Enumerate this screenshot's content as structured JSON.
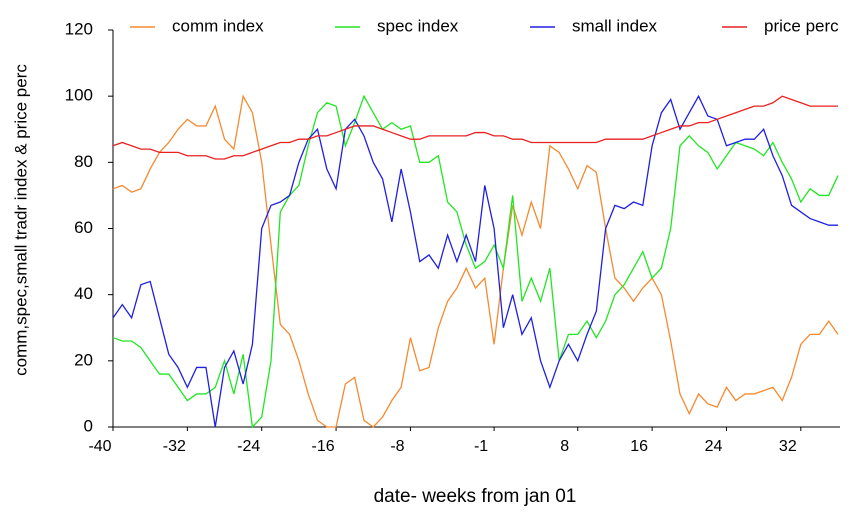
{
  "chart_data": {
    "type": "line",
    "xlabel": "date- weeks from jan 01",
    "ylabel": "comm,spec,small tradr index & price perc",
    "x": [
      0,
      1,
      2,
      3,
      4,
      5,
      6,
      7,
      8,
      9,
      10,
      11,
      12,
      13,
      14,
      15,
      16,
      17,
      18,
      19,
      20,
      21,
      22,
      23,
      24,
      25,
      26,
      27,
      28,
      29,
      30,
      31,
      32,
      33,
      34,
      35,
      36,
      37,
      38,
      39,
      40,
      41,
      42,
      43,
      44,
      45,
      46,
      47,
      48,
      49,
      50,
      51,
      52,
      53,
      54,
      55,
      56,
      57,
      58,
      59,
      60,
      61,
      62,
      63,
      64,
      65,
      66,
      67,
      68,
      69,
      70,
      71,
      72,
      73,
      74,
      75,
      76,
      77,
      78
    ],
    "xlim": [
      0,
      78
    ],
    "xticks": [
      {
        "value": 0,
        "label": "-40"
      },
      {
        "value": 8,
        "label": "-32"
      },
      {
        "value": 16,
        "label": "-24"
      },
      {
        "value": 24,
        "label": "-16"
      },
      {
        "value": 32,
        "label": "-8"
      },
      {
        "value": 41,
        "label": "-1"
      },
      {
        "value": 50,
        "label": "8"
      },
      {
        "value": 58,
        "label": "16"
      },
      {
        "value": 66,
        "label": "24"
      },
      {
        "value": 74,
        "label": "32"
      }
    ],
    "ylim": [
      0,
      120
    ],
    "yticks": [
      0,
      20,
      40,
      60,
      80,
      100,
      120
    ],
    "legend": "top",
    "series": [
      {
        "name": "comm index",
        "color": "#f58a30",
        "values": [
          72,
          73,
          71,
          72,
          78,
          83,
          86,
          90,
          93,
          91,
          91,
          97,
          87,
          84,
          100,
          95,
          80,
          55,
          31,
          28,
          20,
          10,
          2,
          0,
          0,
          13,
          15,
          2,
          0,
          3,
          8,
          12,
          27,
          17,
          18,
          30,
          38,
          42,
          48,
          42,
          45,
          25,
          48,
          67,
          58,
          68,
          60,
          85,
          83,
          78,
          72,
          79,
          77,
          60,
          45,
          42,
          38,
          42,
          45,
          40,
          26,
          10,
          4,
          10,
          7,
          6,
          12,
          8,
          10,
          10,
          11,
          12,
          8,
          15,
          25,
          28,
          28,
          32,
          28
        ]
      },
      {
        "name": "spec index",
        "color": "#22e622",
        "values": [
          27,
          26,
          26,
          24,
          20,
          16,
          16,
          12,
          8,
          10,
          10,
          12,
          20,
          10,
          22,
          0,
          3,
          20,
          65,
          70,
          73,
          85,
          95,
          98,
          97,
          85,
          92,
          100,
          95,
          90,
          92,
          90,
          91,
          80,
          80,
          82,
          68,
          65,
          55,
          48,
          50,
          55,
          48,
          70,
          38,
          45,
          38,
          48,
          20,
          28,
          28,
          32,
          27,
          32,
          40,
          43,
          48,
          53,
          45,
          48,
          60,
          85,
          88,
          85,
          83,
          78,
          82,
          86,
          85,
          84,
          82,
          86,
          80,
          75,
          68,
          72,
          70,
          70,
          76
        ]
      },
      {
        "name": "small index",
        "color": "#2020e0",
        "values": [
          33,
          37,
          33,
          43,
          44,
          33,
          22,
          18,
          12,
          18,
          18,
          0,
          18,
          23,
          13,
          25,
          60,
          67,
          68,
          70,
          80,
          87,
          90,
          78,
          72,
          90,
          93,
          88,
          80,
          75,
          62,
          78,
          65,
          50,
          52,
          48,
          58,
          50,
          58,
          50,
          73,
          60,
          30,
          40,
          28,
          33,
          20,
          12,
          20,
          25,
          20,
          28,
          35,
          60,
          67,
          66,
          68,
          67,
          85,
          95,
          99,
          90,
          95,
          100,
          94,
          93,
          85,
          86,
          87,
          87,
          90,
          82,
          76,
          67,
          65,
          63,
          62,
          61,
          61
        ]
      },
      {
        "name": "price perc",
        "color": "#e82020",
        "values": [
          85,
          86,
          85,
          84,
          84,
          83,
          83,
          83,
          82,
          82,
          82,
          81,
          81,
          82,
          82,
          83,
          84,
          85,
          86,
          86,
          87,
          87,
          88,
          88,
          89,
          90,
          91,
          91,
          91,
          90,
          89,
          88,
          87,
          87,
          88,
          88,
          88,
          88,
          88,
          89,
          89,
          88,
          88,
          87,
          87,
          86,
          86,
          86,
          86,
          86,
          86,
          86,
          86,
          87,
          87,
          87,
          87,
          87,
          88,
          89,
          90,
          91,
          91,
          92,
          92,
          93,
          94,
          95,
          96,
          97,
          97,
          98,
          100,
          99,
          98,
          97,
          97,
          97,
          97
        ]
      }
    ]
  }
}
